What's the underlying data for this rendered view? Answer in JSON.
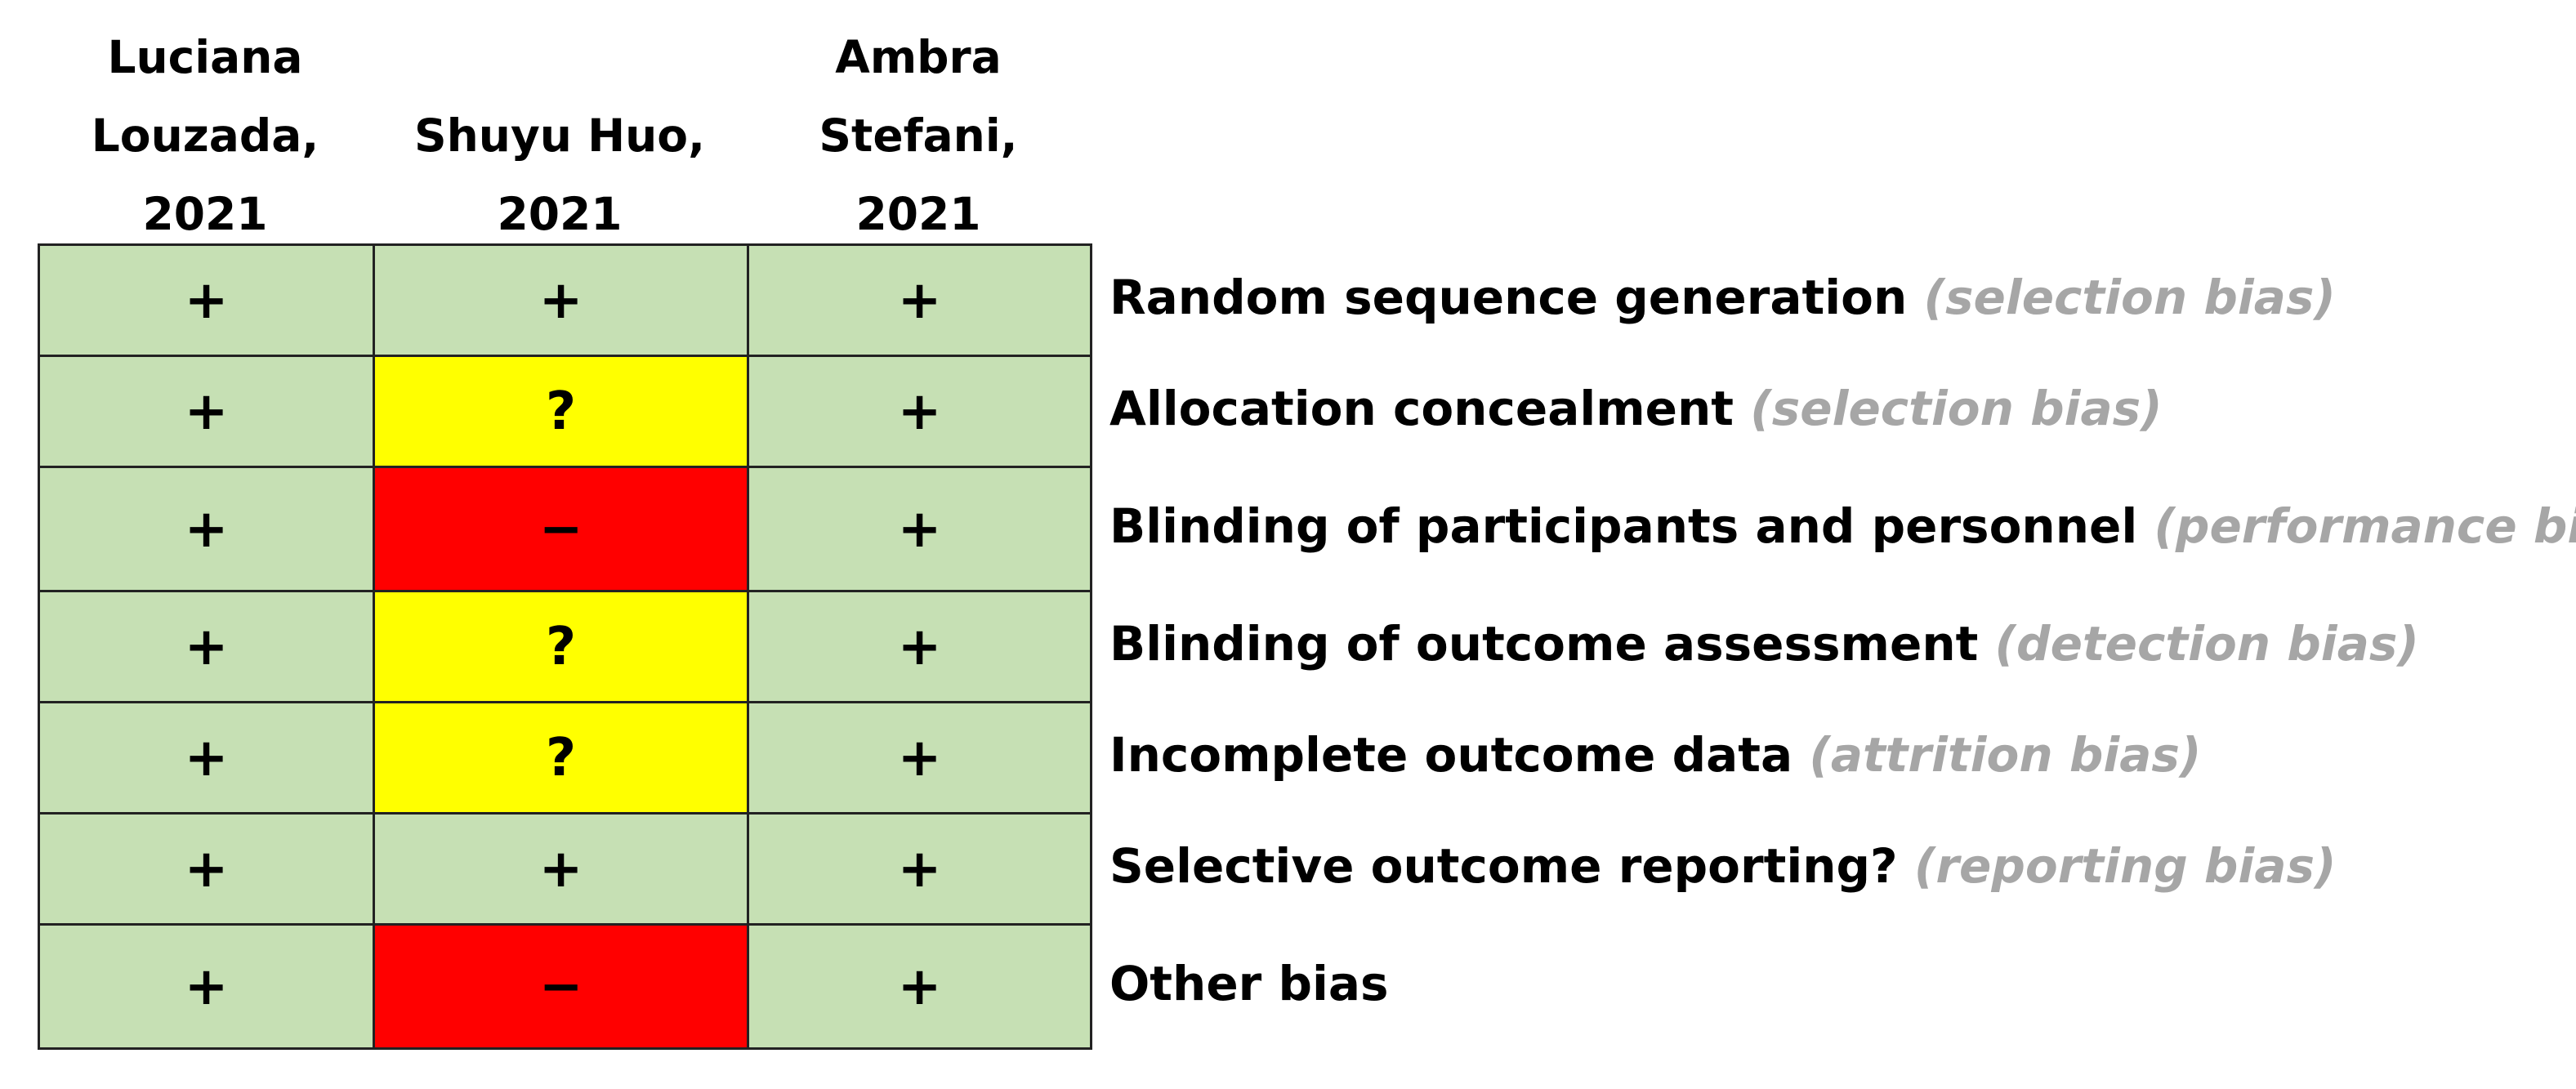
{
  "chart_data": {
    "type": "table",
    "studies": [
      [
        "Luciana",
        "Louzada,",
        "2021"
      ],
      [
        "Shuyu Huo,",
        "2021"
      ],
      [
        "Ambra",
        "Stefani,",
        "2021"
      ]
    ],
    "domains": [
      {
        "label": "Random sequence generation",
        "category": "(selection bias)"
      },
      {
        "label": "Allocation concealment",
        "category": "(selection bias)"
      },
      {
        "label": "Blinding of participants and personnel",
        "category": "(performance bias)"
      },
      {
        "label": "Blinding of outcome assessment",
        "category": "(detection bias)"
      },
      {
        "label": "Incomplete outcome data",
        "category": "(attrition bias)"
      },
      {
        "label": "Selective outcome reporting?",
        "category": "(reporting bias)"
      },
      {
        "label": "Other bias",
        "category": ""
      }
    ],
    "judgements": [
      [
        "+",
        "+",
        "+"
      ],
      [
        "+",
        "?",
        "+"
      ],
      [
        "+",
        "−",
        "+"
      ],
      [
        "+",
        "?",
        "+"
      ],
      [
        "+",
        "?",
        "+"
      ],
      [
        "+",
        "+",
        "+"
      ],
      [
        "+",
        "−",
        "+"
      ]
    ],
    "colors": {
      "+": "#c6e0b4",
      "?": "#ffff00",
      "−": "#ff0000"
    }
  }
}
